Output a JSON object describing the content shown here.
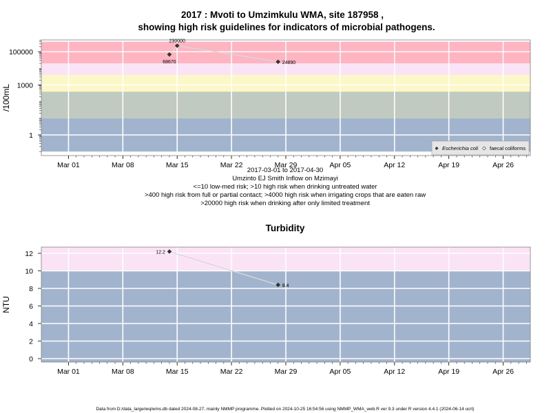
{
  "chart_data": [
    {
      "type": "scatter",
      "title": "2017 : Mvoti to Umzimkulu WMA, site 187958 ,",
      "subtitle": "showing high risk guidelines for indicators of microbial pathogens.",
      "ylabel": "/100mL",
      "y_scale": "log",
      "y_ticks": [
        "1",
        "1000",
        "100000"
      ],
      "x_ticks": [
        "Mar 01",
        "Mar 08",
        "Mar 15",
        "Mar 22",
        "Mar 29",
        "Apr 05",
        "Apr 12",
        "Apr 19",
        "Apr 26"
      ],
      "x_range": [
        "2017-03-01",
        "2017-04-30"
      ],
      "series": [
        {
          "name": "Escherichia coli",
          "points": [
            {
              "x": "2017-03-14",
              "y": 68670,
              "label": "68670"
            },
            {
              "x": "2017-03-28",
              "y": 24890,
              "label": "24890"
            }
          ]
        },
        {
          "name": "faecal coliforms",
          "points": [
            {
              "x": "2017-03-15",
              "y": 230000,
              "label": "230000"
            }
          ]
        }
      ],
      "risk_bands": [
        {
          "from": 0.1,
          "to": 10,
          "color": "#a2b4cd"
        },
        {
          "from": 10,
          "to": 400,
          "color": "#c0cac0"
        },
        {
          "from": 400,
          "to": 4000,
          "color": "#fcf7c6"
        },
        {
          "from": 4000,
          "to": 20000,
          "color": "#fbe3f6"
        },
        {
          "from": 20000,
          "to": 400000,
          "color": "#ffb4c2"
        }
      ],
      "caption_lines": [
        "2017-03-01 to 2017-04-30",
        "Umzinto EJ Smith Inflow on Mzimayi",
        "<=10 low-med risk; >10 high risk when drinking untreated water",
        ">400 high risk from full or partial contact; >4000 high risk when irrigating crops that are eaten raw",
        ">20000 high risk when drinking after only limited treatment"
      ],
      "legend": {
        "position": "bottom-right"
      },
      "grid": true
    },
    {
      "type": "scatter",
      "title": "Turbidity",
      "ylabel": "NTU",
      "ylim": [
        -0.5,
        12.7
      ],
      "y_ticks": [
        "0",
        "2",
        "4",
        "6",
        "8",
        "10",
        "12"
      ],
      "x_ticks": [
        "Mar 01",
        "Mar 08",
        "Mar 15",
        "Mar 22",
        "Mar 29",
        "Apr 05",
        "Apr 12",
        "Apr 19",
        "Apr 26"
      ],
      "x_range": [
        "2017-03-01",
        "2017-04-30"
      ],
      "series": [
        {
          "points": [
            {
              "x": "2017-03-14",
              "y": 12.2,
              "label": "12.2"
            },
            {
              "x": "2017-03-28",
              "y": 8.4,
              "label": "8.4"
            }
          ]
        }
      ],
      "risk_bands": [
        {
          "from": -0.5,
          "to": 10,
          "color": "#a2b4cd"
        },
        {
          "from": 10,
          "to": 12.7,
          "color": "#fbe3f6"
        }
      ],
      "grid": true
    }
  ],
  "footer": "Data from D:/data_large/wq/wms.db dated 2024-08-27, mainly NMMP programme. Plotted on 2024-10-25 16:54:56 using NMMP_WMA_web.R ver 9.3 under R version 4.4.1 (2024-06-14 ucrt)"
}
